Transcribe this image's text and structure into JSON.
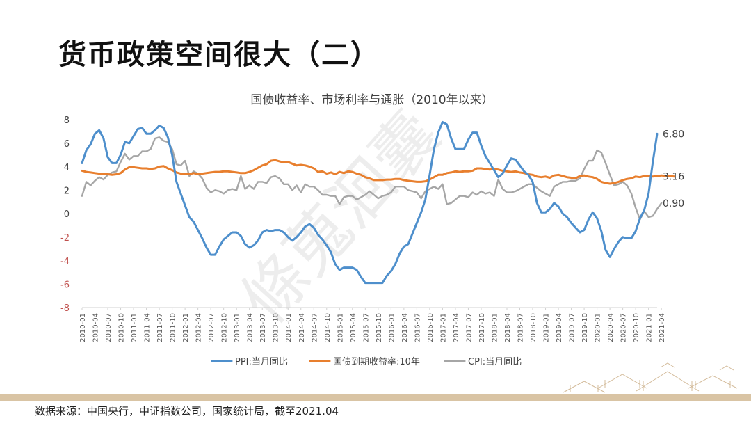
{
  "slide": {
    "title": "货币政策空间很大（二）",
    "source": "数据来源：中国央行，中证指数公司，国家统计局，截至2021.04",
    "watermark": "條蒐洄囊"
  },
  "colors": {
    "ppi": "#4e8fcc",
    "bond": "#e87f2e",
    "cpi": "#a6a6a6",
    "negative_tick": "#c0504d",
    "footer_band": "#d9c4a4"
  },
  "chart_data": {
    "type": "line",
    "title": "国债收益率、市场利率与通胀（2010年以来）",
    "ylim": [
      -8,
      8
    ],
    "yticks": [
      "8",
      "6",
      "4",
      "2",
      "0",
      "-2",
      "-4",
      "-6",
      "-8"
    ],
    "grid": false,
    "legend_position": "bottom",
    "x_tick_labels": [
      "2010-01",
      "2010-04",
      "2010-07",
      "2010-10",
      "2011-01",
      "2011-04",
      "2011-07",
      "2011-10",
      "2012-01",
      "2012-04",
      "2012-07",
      "2012-10",
      "2013-01",
      "2013-04",
      "2013-07",
      "2013-10",
      "2014-01",
      "2014-04",
      "2014-07",
      "2014-10",
      "2015-01",
      "2015-04",
      "2015-07",
      "2015-10",
      "2016-01",
      "2016-04",
      "2016-07",
      "2016-10",
      "2017-01",
      "2017-04",
      "2017-07",
      "2017-10",
      "2018-01",
      "2018-04",
      "2018-07",
      "2018-10",
      "2019-01",
      "2019-04",
      "2019-07",
      "2019-10",
      "2020-01",
      "2020-04",
      "2020-07",
      "2020-10",
      "2021-01",
      "2021-04"
    ],
    "series": [
      {
        "name": "PPI:当月同比",
        "color_key": "ppi",
        "end_label": "6.80",
        "values": [
          4.3,
          5.4,
          5.9,
          6.8,
          7.1,
          6.4,
          4.8,
          4.3,
          4.3,
          5.0,
          6.1,
          6.0,
          6.6,
          7.2,
          7.3,
          6.8,
          6.8,
          7.1,
          7.5,
          7.3,
          6.5,
          5.0,
          2.7,
          1.7,
          0.7,
          -0.3,
          -0.7,
          -1.4,
          -2.1,
          -2.9,
          -3.5,
          -3.5,
          -2.8,
          -2.2,
          -1.9,
          -1.6,
          -1.6,
          -1.9,
          -2.6,
          -2.9,
          -2.7,
          -2.3,
          -1.6,
          -1.4,
          -1.5,
          -1.4,
          -1.4,
          -1.6,
          -2.0,
          -2.3,
          -2.0,
          -1.6,
          -1.1,
          -0.9,
          -1.2,
          -1.8,
          -2.2,
          -2.7,
          -3.3,
          -4.3,
          -4.8,
          -4.6,
          -4.6,
          -4.6,
          -4.8,
          -5.4,
          -5.9,
          -5.9,
          -5.9,
          -5.9,
          -5.9,
          -5.3,
          -4.9,
          -4.3,
          -3.4,
          -2.8,
          -2.6,
          -1.7,
          -0.8,
          0.1,
          1.2,
          3.3,
          5.5,
          6.9,
          7.8,
          7.6,
          6.4,
          5.5,
          5.5,
          5.5,
          6.3,
          6.9,
          6.9,
          5.8,
          4.9,
          4.3,
          3.7,
          3.1,
          3.4,
          4.1,
          4.7,
          4.6,
          4.1,
          3.6,
          3.3,
          2.7,
          0.9,
          0.1,
          0.1,
          0.4,
          0.9,
          0.6,
          0.0,
          -0.3,
          -0.8,
          -1.2,
          -1.6,
          -1.4,
          -0.5,
          0.1,
          -0.4,
          -1.5,
          -3.1,
          -3.7,
          -3.0,
          -2.4,
          -2.0,
          -2.1,
          -2.1,
          -1.5,
          -0.4,
          0.3,
          1.7,
          4.4,
          6.8
        ]
      },
      {
        "name": "国债到期收益率:10年",
        "color_key": "bond",
        "end_label": "3.16",
        "values": [
          3.65,
          3.55,
          3.5,
          3.45,
          3.4,
          3.35,
          3.35,
          3.3,
          3.35,
          3.45,
          3.75,
          3.95,
          3.95,
          3.9,
          3.85,
          3.85,
          3.8,
          3.85,
          4.0,
          4.05,
          3.85,
          3.7,
          3.5,
          3.4,
          3.35,
          3.35,
          3.45,
          3.35,
          3.4,
          3.45,
          3.5,
          3.55,
          3.55,
          3.6,
          3.6,
          3.55,
          3.5,
          3.45,
          3.45,
          3.55,
          3.7,
          3.9,
          4.1,
          4.2,
          4.5,
          4.55,
          4.45,
          4.35,
          4.4,
          4.25,
          4.1,
          4.15,
          4.1,
          4.0,
          3.85,
          3.55,
          3.6,
          3.4,
          3.5,
          3.35,
          3.55,
          3.45,
          3.6,
          3.55,
          3.4,
          3.3,
          3.1,
          3.0,
          2.85,
          2.85,
          2.85,
          2.9,
          2.9,
          2.95,
          2.95,
          2.85,
          2.8,
          2.75,
          2.7,
          2.7,
          2.75,
          2.9,
          3.1,
          3.3,
          3.3,
          3.45,
          3.5,
          3.6,
          3.55,
          3.6,
          3.6,
          3.65,
          3.85,
          3.85,
          3.8,
          3.75,
          3.8,
          3.75,
          3.65,
          3.6,
          3.55,
          3.6,
          3.5,
          3.45,
          3.35,
          3.3,
          3.15,
          3.1,
          3.15,
          3.05,
          3.25,
          3.3,
          3.2,
          3.1,
          3.05,
          3.0,
          3.2,
          3.25,
          3.15,
          3.1,
          2.95,
          2.7,
          2.6,
          2.55,
          2.6,
          2.7,
          2.85,
          2.95,
          3.0,
          3.15,
          3.1,
          3.2,
          3.2,
          3.15,
          3.2,
          3.25,
          3.2,
          3.2,
          3.16
        ]
      },
      {
        "name": "CPI:当月同比",
        "color_key": "cpi",
        "end_label": "0.90",
        "values": [
          1.5,
          2.7,
          2.4,
          2.8,
          3.1,
          2.9,
          3.3,
          3.5,
          3.6,
          4.4,
          5.1,
          4.6,
          4.9,
          4.9,
          5.3,
          5.3,
          5.5,
          6.4,
          6.5,
          6.2,
          6.1,
          5.5,
          4.2,
          4.1,
          4.5,
          3.2,
          3.6,
          3.4,
          3.0,
          2.2,
          1.8,
          2.0,
          1.9,
          1.7,
          2.0,
          2.1,
          2.0,
          3.2,
          2.1,
          2.4,
          2.1,
          2.7,
          2.7,
          2.6,
          3.1,
          3.2,
          3.0,
          2.5,
          2.5,
          2.0,
          2.4,
          1.8,
          2.5,
          2.3,
          2.3,
          2.0,
          1.6,
          1.6,
          1.5,
          1.5,
          0.8,
          1.4,
          1.5,
          1.5,
          1.2,
          1.4,
          1.6,
          1.9,
          1.6,
          1.3,
          1.5,
          1.6,
          1.8,
          2.3,
          2.3,
          2.3,
          2.0,
          1.9,
          1.8,
          1.3,
          1.9,
          2.1,
          2.3,
          2.1,
          2.5,
          0.8,
          0.9,
          1.2,
          1.5,
          1.5,
          1.4,
          1.8,
          1.6,
          1.9,
          1.7,
          1.8,
          1.5,
          2.9,
          2.1,
          1.8,
          1.8,
          1.9,
          2.1,
          2.3,
          2.5,
          2.5,
          2.2,
          1.9,
          1.7,
          1.5,
          2.3,
          2.5,
          2.7,
          2.7,
          2.8,
          2.8,
          3.0,
          3.8,
          4.5,
          4.5,
          5.4,
          5.2,
          4.3,
          3.3,
          2.4,
          2.5,
          2.7,
          2.4,
          1.7,
          0.5,
          -0.5,
          0.2,
          -0.3,
          -0.2,
          0.4,
          0.9
        ]
      }
    ]
  }
}
